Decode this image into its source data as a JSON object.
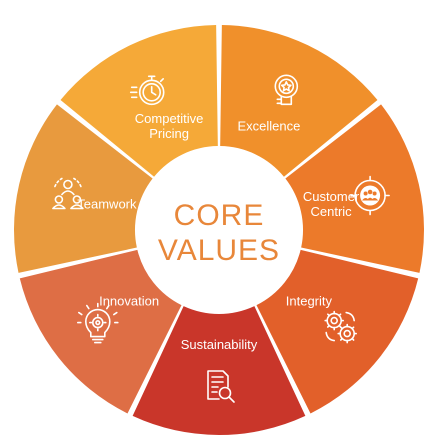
{
  "center": {
    "line1": "CORE",
    "line2": "VALUES",
    "color": "#e8873a"
  },
  "segments": [
    {
      "id": "excellence",
      "label_lines": [
        "Excellence"
      ],
      "color": "#f0902b",
      "icon": "medal-badge-icon"
    },
    {
      "id": "customer-centric",
      "label_lines": [
        "Customer",
        "Centric"
      ],
      "color": "#ec7a2a",
      "icon": "group-target-icon"
    },
    {
      "id": "integrity",
      "label_lines": [
        "Integrity"
      ],
      "color": "#e2602a",
      "icon": "gears-icon"
    },
    {
      "id": "sustainability",
      "label_lines": [
        "Sustainability"
      ],
      "color": "#c9362a",
      "icon": "document-search-icon"
    },
    {
      "id": "innovation",
      "label_lines": [
        "Innovation"
      ],
      "color": "#de6e45",
      "icon": "lightbulb-gear-icon"
    },
    {
      "id": "teamwork",
      "label_lines": [
        "Teamwork"
      ],
      "color": "#e89a3e",
      "icon": "team-people-icon"
    },
    {
      "id": "competitive-pricing",
      "label_lines": [
        "Competitive",
        "Pricing"
      ],
      "color": "#f5a938",
      "icon": "stopwatch-icon"
    }
  ]
}
